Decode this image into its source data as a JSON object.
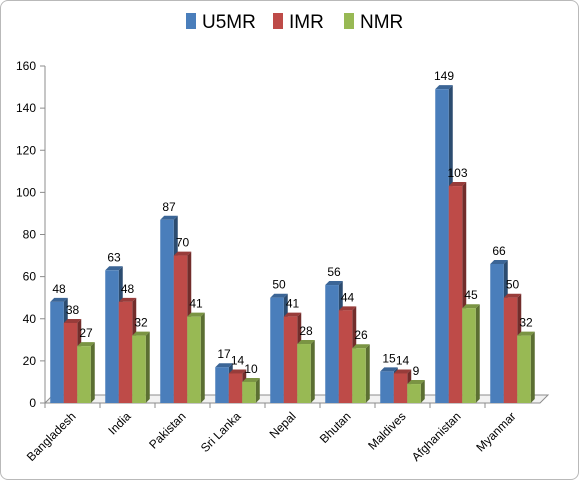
{
  "chart_data": {
    "type": "bar",
    "title": "",
    "xlabel": "",
    "ylabel": "",
    "ylim": [
      0,
      160
    ],
    "yticks": [
      0,
      20,
      40,
      60,
      80,
      100,
      120,
      140,
      160
    ],
    "grid": false,
    "legend_position": "top",
    "categories": [
      "Bangladesh",
      "India",
      "Pakistan",
      "Sri Lanka",
      "Nepal",
      "Bhutan",
      "Maldives",
      "Afghanistan",
      "Myanmar"
    ],
    "series": [
      {
        "name": "U5MR",
        "color": "#4a7ebb",
        "values": [
          48,
          63,
          87,
          17,
          50,
          56,
          15,
          149,
          66
        ]
      },
      {
        "name": "IMR",
        "color": "#be4b48",
        "values": [
          38,
          48,
          70,
          14,
          41,
          44,
          14,
          103,
          50
        ]
      },
      {
        "name": "NMR",
        "color": "#98b954",
        "values": [
          27,
          32,
          41,
          10,
          28,
          26,
          9,
          45,
          32
        ]
      }
    ]
  }
}
